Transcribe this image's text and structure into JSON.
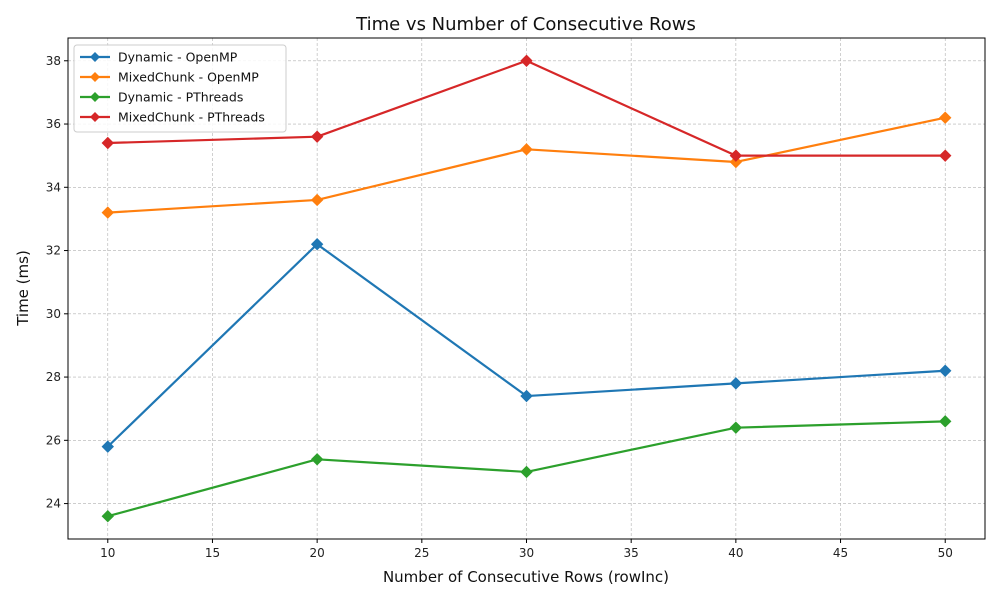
{
  "chart_data": {
    "type": "line",
    "title": "Time vs Number of Consecutive Rows",
    "xlabel": "Number of Consecutive Rows (rowInc)",
    "ylabel": "Time (ms)",
    "x": [
      10,
      20,
      30,
      40,
      50
    ],
    "xlim": [
      8.1,
      51.9
    ],
    "ylim": [
      22.88,
      38.72
    ],
    "xticks": [
      "10",
      "15",
      "20",
      "25",
      "30",
      "35",
      "40",
      "45",
      "50"
    ],
    "yticks": [
      "24",
      "26",
      "28",
      "30",
      "32",
      "34",
      "36",
      "38"
    ],
    "grid": true,
    "legend_position": "top-left",
    "marker": "diamond",
    "series": [
      {
        "name": "Dynamic - OpenMP",
        "color": "#1f77b4",
        "values": [
          25.8,
          32.2,
          27.4,
          27.8,
          28.2
        ]
      },
      {
        "name": "MixedChunk - OpenMP",
        "color": "#ff7f0e",
        "values": [
          33.2,
          33.6,
          35.2,
          34.8,
          36.2
        ]
      },
      {
        "name": "Dynamic - PThreads",
        "color": "#2ca02c",
        "values": [
          23.6,
          25.4,
          25.0,
          26.4,
          26.6
        ]
      },
      {
        "name": "MixedChunk - PThreads",
        "color": "#d62728",
        "values": [
          35.4,
          35.6,
          38.0,
          35.0,
          35.0
        ]
      }
    ]
  }
}
